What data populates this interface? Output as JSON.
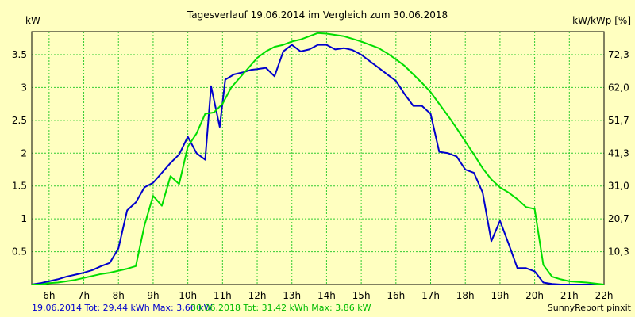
{
  "chart_data": {
    "type": "line",
    "title": "Tagesverlauf 19.06.2014 im Vergleich zum 30.06.2018",
    "ylabel_left": "kW",
    "ylabel_right": "kW/kWp [%]",
    "xlim": [
      5.5,
      22.0
    ],
    "ylim": [
      0,
      3.85
    ],
    "x_tick_labels": [
      "6h",
      "7h",
      "8h",
      "9h",
      "10h",
      "11h",
      "12h",
      "13h",
      "14h",
      "15h",
      "16h",
      "17h",
      "18h",
      "19h",
      "20h",
      "21h",
      "22h"
    ],
    "y_tick_labels_left": [
      "0.5",
      "1",
      "1.5",
      "2",
      "2.5",
      "3",
      "3.5"
    ],
    "y_tick_labels_right": [
      "10,3",
      "20,7",
      "31,0",
      "41,3",
      "51,7",
      "62,0",
      "72,3"
    ],
    "grid": true,
    "series": [
      {
        "name": "19.06.2014",
        "color": "#0000cc",
        "x": [
          5.5,
          5.75,
          6.0,
          6.25,
          6.5,
          6.75,
          7.0,
          7.25,
          7.5,
          7.75,
          8.0,
          8.25,
          8.5,
          8.75,
          9.0,
          9.25,
          9.5,
          9.75,
          10.0,
          10.25,
          10.5,
          10.67,
          10.92,
          11.08,
          11.33,
          11.58,
          11.83,
          12.0,
          12.25,
          12.5,
          12.75,
          13.0,
          13.25,
          13.5,
          13.75,
          14.0,
          14.25,
          14.5,
          14.75,
          15.0,
          15.25,
          15.5,
          15.75,
          16.0,
          16.25,
          16.5,
          16.75,
          17.0,
          17.25,
          17.5,
          17.75,
          18.0,
          18.25,
          18.5,
          18.75,
          19.0,
          19.25,
          19.5,
          19.75,
          20.0,
          20.25,
          20.5,
          20.75,
          21.0,
          21.25,
          21.5,
          21.75,
          22.0
        ],
        "y": [
          0.0,
          0.02,
          0.05,
          0.08,
          0.12,
          0.15,
          0.18,
          0.22,
          0.28,
          0.33,
          0.55,
          1.13,
          1.25,
          1.48,
          1.55,
          1.7,
          1.85,
          1.98,
          2.25,
          2.0,
          1.9,
          3.02,
          2.4,
          3.12,
          3.2,
          3.23,
          3.27,
          3.28,
          3.3,
          3.17,
          3.55,
          3.65,
          3.55,
          3.58,
          3.65,
          3.65,
          3.58,
          3.6,
          3.57,
          3.5,
          3.4,
          3.3,
          3.2,
          3.1,
          2.9,
          2.72,
          2.72,
          2.6,
          2.02,
          2.0,
          1.95,
          1.75,
          1.7,
          1.4,
          0.66,
          0.97,
          0.62,
          0.25,
          0.25,
          0.2,
          0.03,
          0.01,
          0.0,
          0.0,
          0.0,
          0.0,
          0.0,
          0.0
        ]
      },
      {
        "name": "30.06.2018",
        "color": "#00dd00",
        "x": [
          5.5,
          5.75,
          6.0,
          6.25,
          6.5,
          6.75,
          7.0,
          7.25,
          7.5,
          7.75,
          8.0,
          8.25,
          8.5,
          8.75,
          9.0,
          9.25,
          9.5,
          9.75,
          10.0,
          10.25,
          10.5,
          10.75,
          11.0,
          11.25,
          11.5,
          11.75,
          12.0,
          12.25,
          12.5,
          12.75,
          13.0,
          13.25,
          13.5,
          13.75,
          14.0,
          14.25,
          14.5,
          14.75,
          15.0,
          15.25,
          15.5,
          15.75,
          16.0,
          16.25,
          16.5,
          16.75,
          17.0,
          17.25,
          17.5,
          17.75,
          18.0,
          18.25,
          18.5,
          18.75,
          19.0,
          19.25,
          19.5,
          19.75,
          20.0,
          20.25,
          20.5,
          20.75,
          21.0,
          21.5,
          22.0
        ],
        "y": [
          0.0,
          0.0,
          0.02,
          0.03,
          0.05,
          0.07,
          0.1,
          0.13,
          0.16,
          0.18,
          0.21,
          0.24,
          0.28,
          0.9,
          1.35,
          1.2,
          1.65,
          1.53,
          2.1,
          2.3,
          2.6,
          2.62,
          2.75,
          3.0,
          3.15,
          3.3,
          3.45,
          3.55,
          3.62,
          3.65,
          3.7,
          3.73,
          3.78,
          3.83,
          3.82,
          3.8,
          3.78,
          3.74,
          3.7,
          3.65,
          3.6,
          3.52,
          3.43,
          3.33,
          3.2,
          3.07,
          2.93,
          2.75,
          2.57,
          2.38,
          2.18,
          1.98,
          1.77,
          1.6,
          1.48,
          1.4,
          1.3,
          1.18,
          1.15,
          0.3,
          0.12,
          0.08,
          0.05,
          0.03,
          0.0
        ]
      }
    ]
  },
  "footer": {
    "series1_label": "19.06.2014 Tot: 29,44 kWh Max: 3,66 kW",
    "series2_label": "30.06.2018 Tot: 31,42 kWh Max: 3,86 kW",
    "brand": "SunnyReport pinxit"
  }
}
